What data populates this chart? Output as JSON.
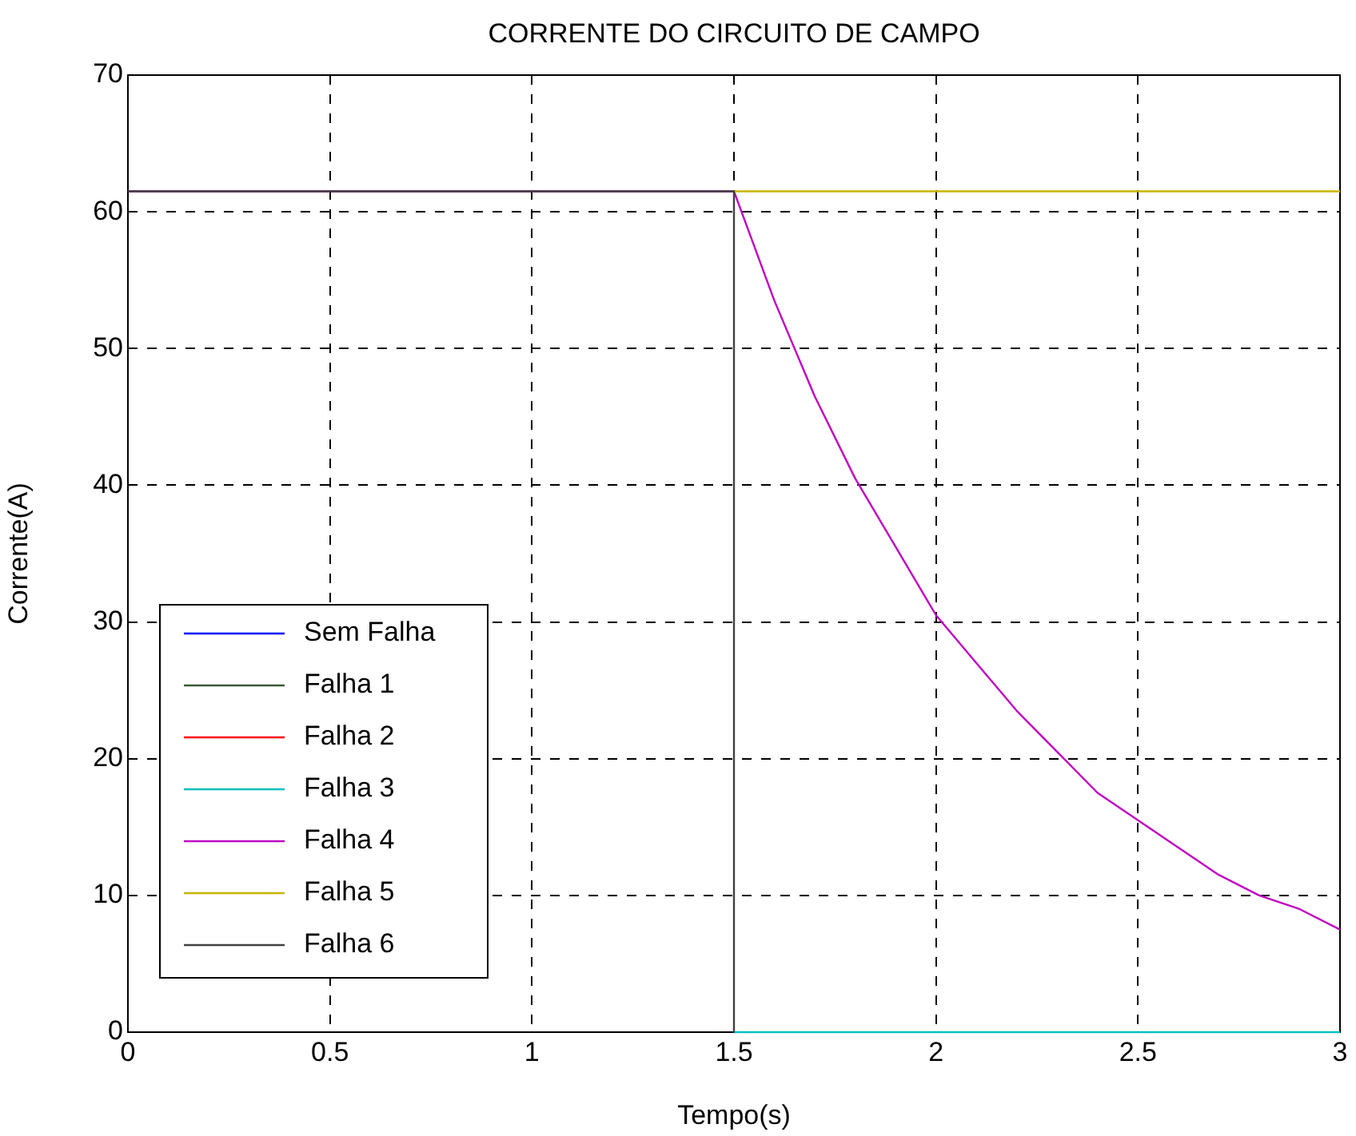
{
  "chart_data": {
    "type": "line",
    "title": "CORRENTE DO CIRCUITO DE CAMPO",
    "xlabel": "Tempo(s)",
    "ylabel": "Corrente(A)",
    "xlim": [
      0,
      3
    ],
    "xticks": [
      0,
      0.5,
      1,
      1.5,
      2,
      2.5,
      3
    ],
    "ylim": [
      0,
      70
    ],
    "yticks": [
      0,
      10,
      20,
      30,
      40,
      50,
      60,
      70
    ],
    "grid": true,
    "legend": "bottom left",
    "marker": "none",
    "line_style": "solid",
    "series": [
      {
        "name": "Sem Falha",
        "color": "#0000ff",
        "values": [
          null
        ]
      },
      {
        "name": "Falha 1",
        "color": "#3a5a3a",
        "values": [
          null
        ]
      },
      {
        "name": "Falha 2",
        "color": "#ff0000",
        "values": [
          null
        ]
      },
      {
        "name": "Falha 3",
        "color": "#00c0c0",
        "x": [
          1.5,
          3
        ],
        "values": [
          0,
          0
        ]
      },
      {
        "name": "Falha 4",
        "color": "#c000c0",
        "x": [
          0,
          1.5,
          1.6,
          1.7,
          1.8,
          1.9,
          2,
          2.1,
          2.2,
          2.3,
          2.4,
          2.5,
          2.6,
          2.7,
          2.8,
          2.9,
          3
        ],
        "values": [
          61.5,
          61.5,
          53.5,
          46.5,
          40.5,
          35.5,
          30.5,
          27,
          23.5,
          20.5,
          17.5,
          15.5,
          13.5,
          11.5,
          10,
          9,
          7.5
        ]
      },
      {
        "name": "Falha 5",
        "color": "#c8b400",
        "x": [
          1.5,
          3
        ],
        "values": [
          61.5,
          61.5
        ]
      },
      {
        "name": "Falha 6",
        "color": "#404040",
        "x": [
          0,
          1.5,
          1.5
        ],
        "values": [
          61.5,
          61.5,
          0
        ]
      }
    ]
  }
}
